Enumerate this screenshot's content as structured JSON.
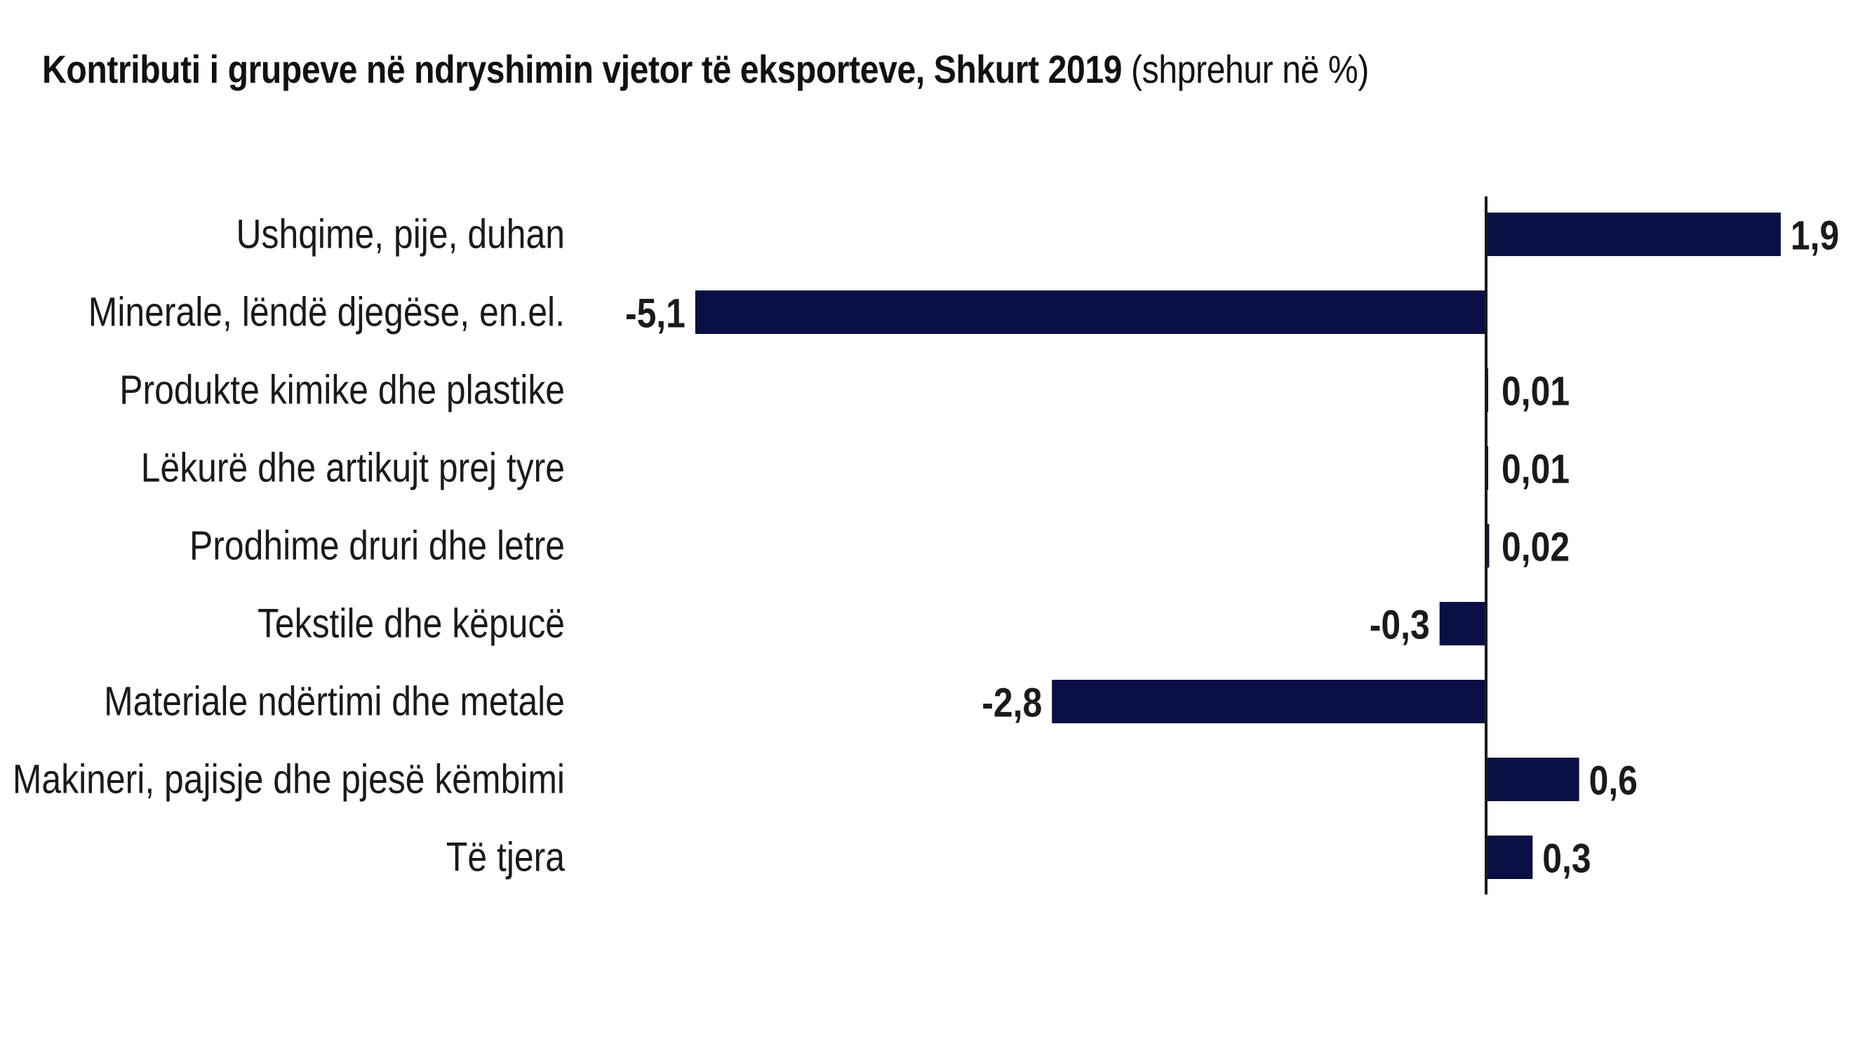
{
  "chart_data": {
    "type": "bar",
    "orientation": "horizontal",
    "title": "Kontributi i grupeve në ndryshimin vjetor të eksporteve, Shkurt 2019",
    "subtitle": "(shprehur në %)",
    "categories": [
      "Ushqime, pije, duhan",
      "Minerale, lëndë djegëse, en.el.",
      "Produkte kimike dhe plastike",
      "Lëkurë dhe artikujt prej tyre",
      "Prodhime druri dhe letre",
      "Tekstile dhe këpucë",
      "Materiale ndërtimi dhe metale",
      "Makineri, pajisje dhe pjesë këmbimi",
      "Të tjera"
    ],
    "values": [
      1.9,
      -5.1,
      0.01,
      0.01,
      0.02,
      -0.3,
      -2.8,
      0.6,
      0.3
    ],
    "value_labels": [
      "1,9",
      "-5,1",
      "0,01",
      "0,01",
      "0,02",
      "-0,3",
      "-2,8",
      "0,6",
      "0,3"
    ],
    "xlim": [
      -5.1,
      1.9
    ],
    "xlabel": "",
    "ylabel": "",
    "grid": false,
    "legend": "none",
    "bar_color": "#0a0f45",
    "axis_color": "#1a1a1a"
  }
}
